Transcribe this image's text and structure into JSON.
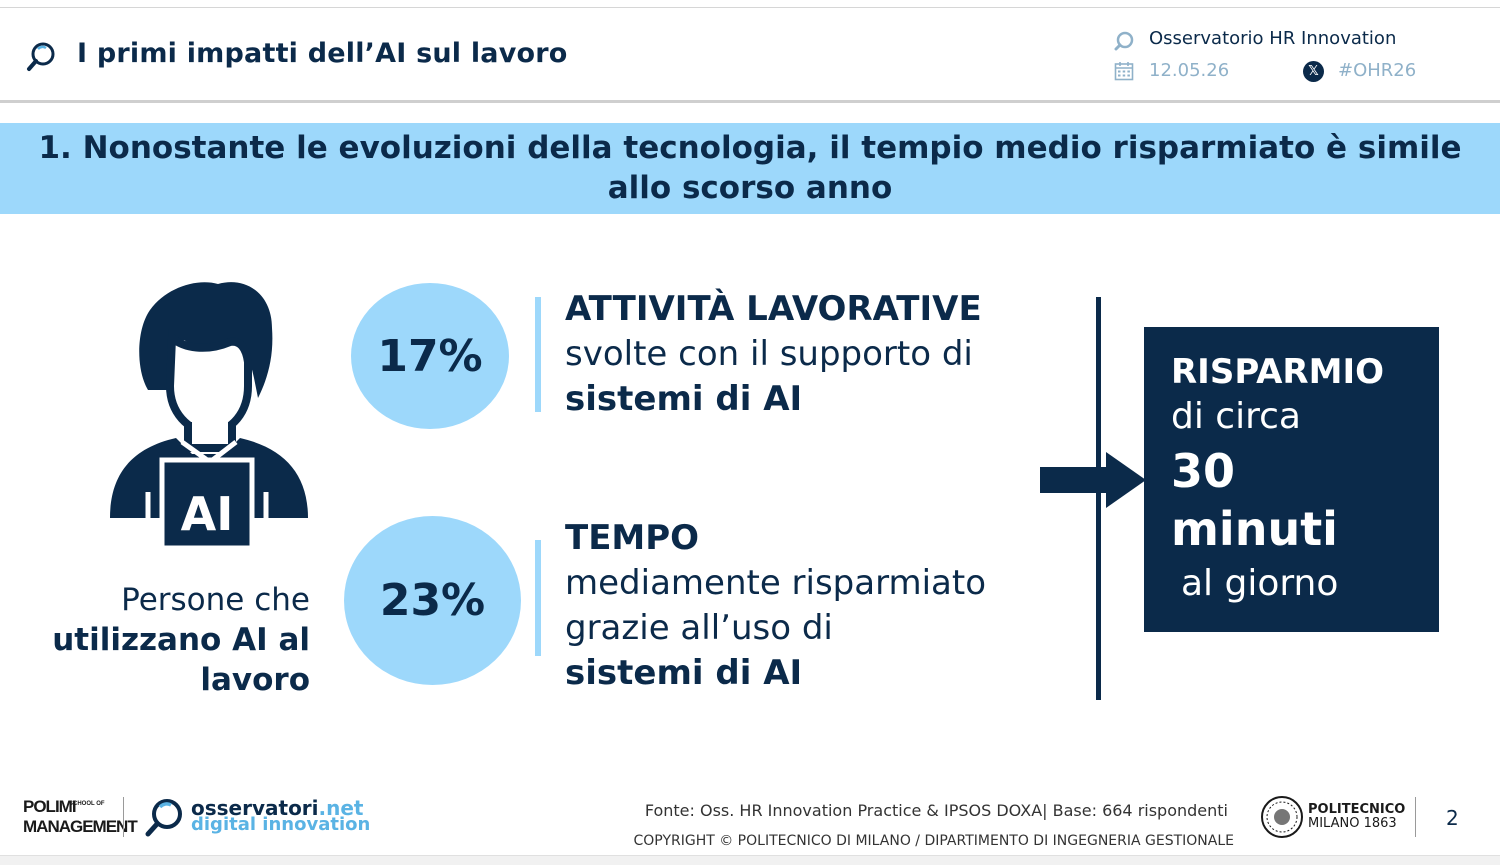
{
  "header": {
    "title": "I primi impatti dell’AI sul lavoro",
    "organization": "Osservatorio HR Innovation",
    "date": "12.05.26",
    "hashtag": "#OHR26"
  },
  "banner": {
    "text": "1. Nonostante le evoluzioni della tecnologia, il tempio medio risparmiato è simile allo scorso anno"
  },
  "person_figure": {
    "badge_text": "AI",
    "caption_normal": "Persone che",
    "caption_bold_1": "utilizzano AI al",
    "caption_bold_2": "lavoro"
  },
  "stats": [
    {
      "value": "17%",
      "title": "ATTIVITÀ LAVORATIVE",
      "line_1": "svolte con il supporto di",
      "line_2": "sistemi di AI"
    },
    {
      "value": "23%",
      "title": "TEMPO",
      "line_1": "mediamente risparmiato",
      "line_2": "grazie all’uso di",
      "line_3": "sistemi di AI"
    }
  ],
  "result_box": {
    "line_1": "RISPARMIO",
    "line_2": "di circa",
    "line_3": "30",
    "line_4": "minuti",
    "line_5": "al giorno"
  },
  "footer": {
    "polimi_1": "POLIMI",
    "polimi_school": "SCHOOL OF",
    "polimi_2": "MANAGEMENT",
    "osservatori_1": "osservatori",
    "osservatori_tld": ".net",
    "osservatori_2": "digital innovation",
    "source": "Fonte: Oss. HR Innovation Practice & IPSOS DOXA| Base: 664 rispondenti",
    "copyright": "COPYRIGHT © POLITECNICO DI MILANO / DIPARTIMENTO DI INGEGNERIA GESTIONALE",
    "politecnico_1": "POLITECNICO",
    "politecnico_2": "MILANO 1863",
    "page_number": "2"
  },
  "colors": {
    "navy": "#0b2a4a",
    "light_blue": "#9dd8fb",
    "muted_blue": "#8fb1c9",
    "accent_blue": "#5ab3e4"
  }
}
